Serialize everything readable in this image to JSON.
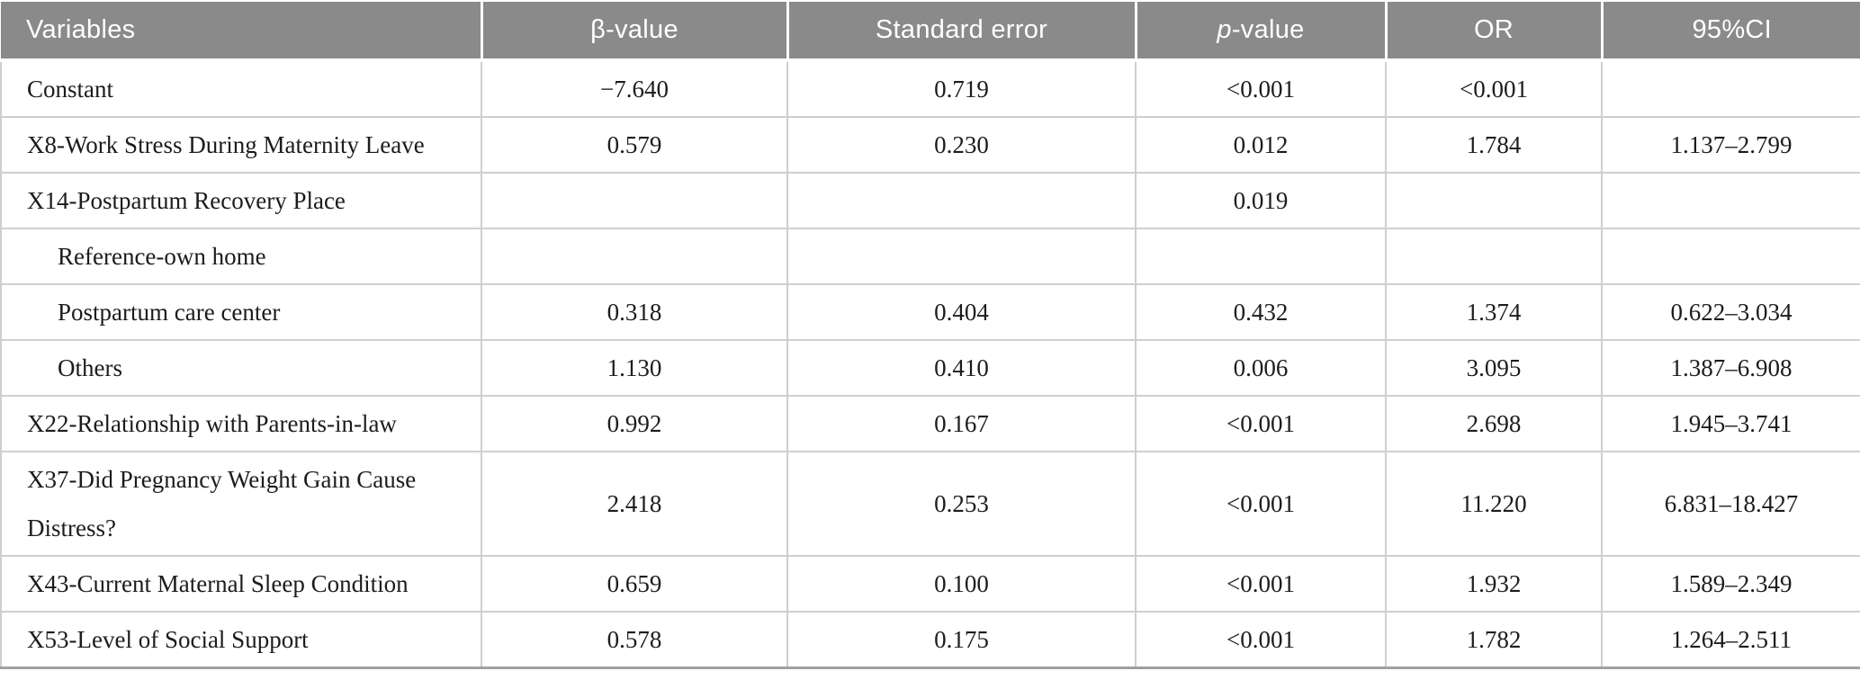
{
  "table": {
    "columns": [
      {
        "label": "Variables"
      },
      {
        "label": "β-value"
      },
      {
        "label": "Standard error"
      },
      {
        "prefix": "p",
        "rest": "-value"
      },
      {
        "label": "OR"
      },
      {
        "label": "95%CI"
      }
    ],
    "rows": [
      {
        "variable": "Constant",
        "indent": false,
        "beta": "−7.640",
        "se": "0.719",
        "p": "<0.001",
        "or": "<0.001",
        "ci": ""
      },
      {
        "variable": "X8-Work Stress During Maternity Leave",
        "indent": false,
        "beta": "0.579",
        "se": "0.230",
        "p": "0.012",
        "or": "1.784",
        "ci": "1.137–2.799"
      },
      {
        "variable": "X14-Postpartum Recovery Place",
        "indent": false,
        "beta": "",
        "se": "",
        "p": "0.019",
        "or": "",
        "ci": ""
      },
      {
        "variable": "Reference-own home",
        "indent": true,
        "beta": "",
        "se": "",
        "p": "",
        "or": "",
        "ci": ""
      },
      {
        "variable": "Postpartum care center",
        "indent": true,
        "beta": "0.318",
        "se": "0.404",
        "p": "0.432",
        "or": "1.374",
        "ci": "0.622–3.034"
      },
      {
        "variable": "Others",
        "indent": true,
        "beta": "1.130",
        "se": "0.410",
        "p": "0.006",
        "or": "3.095",
        "ci": "1.387–6.908"
      },
      {
        "variable": "X22-Relationship with Parents-in-law",
        "indent": false,
        "beta": "0.992",
        "se": "0.167",
        "p": "<0.001",
        "or": "2.698",
        "ci": "1.945–3.741"
      },
      {
        "variable": "X37-Did Pregnancy Weight Gain Cause Distress?",
        "indent": false,
        "beta": "2.418",
        "se": "0.253",
        "p": "<0.001",
        "or": "11.220",
        "ci": "6.831–18.427"
      },
      {
        "variable": "X43-Current Maternal Sleep Condition",
        "indent": false,
        "beta": "0.659",
        "se": "0.100",
        "p": "<0.001",
        "or": "1.932",
        "ci": "1.589–2.349"
      },
      {
        "variable": "X53-Level of Social Support",
        "indent": false,
        "beta": "0.578",
        "se": "0.175",
        "p": "<0.001",
        "or": "1.782",
        "ci": "1.264–2.511"
      }
    ],
    "colors": {
      "header_bg": "#8a8a8a",
      "header_text": "#ffffff",
      "body_text": "#1c1c1c",
      "grid_line": "#cfcfcf",
      "bottom_border": "#a0a0a0"
    }
  }
}
